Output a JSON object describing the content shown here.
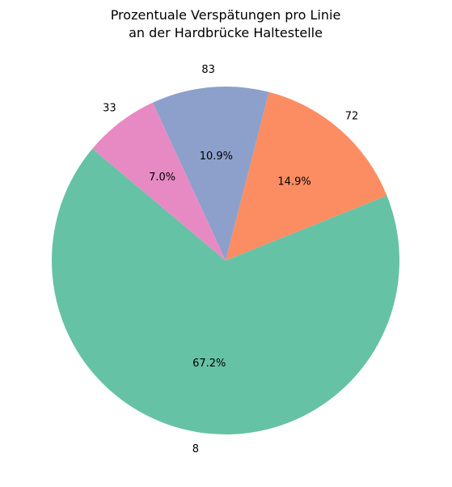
{
  "chart_data": {
    "type": "pie",
    "title_lines": [
      "Prozentuale Verspätungen pro Linie",
      "an der Hardbrücke Haltestelle"
    ],
    "slices": [
      {
        "label": "8",
        "value": 67.2,
        "pct_label": "67.2%",
        "color": "#66c2a5"
      },
      {
        "label": "72",
        "value": 14.9,
        "pct_label": "14.9%",
        "color": "#fc8d62"
      },
      {
        "label": "83",
        "value": 10.9,
        "pct_label": "10.9%",
        "color": "#8da0cb"
      },
      {
        "label": "33",
        "value": 7.0,
        "pct_label": "7.0%",
        "color": "#e78ac3"
      }
    ],
    "start_angle_deg": 140,
    "direction": "counterclockwise"
  }
}
